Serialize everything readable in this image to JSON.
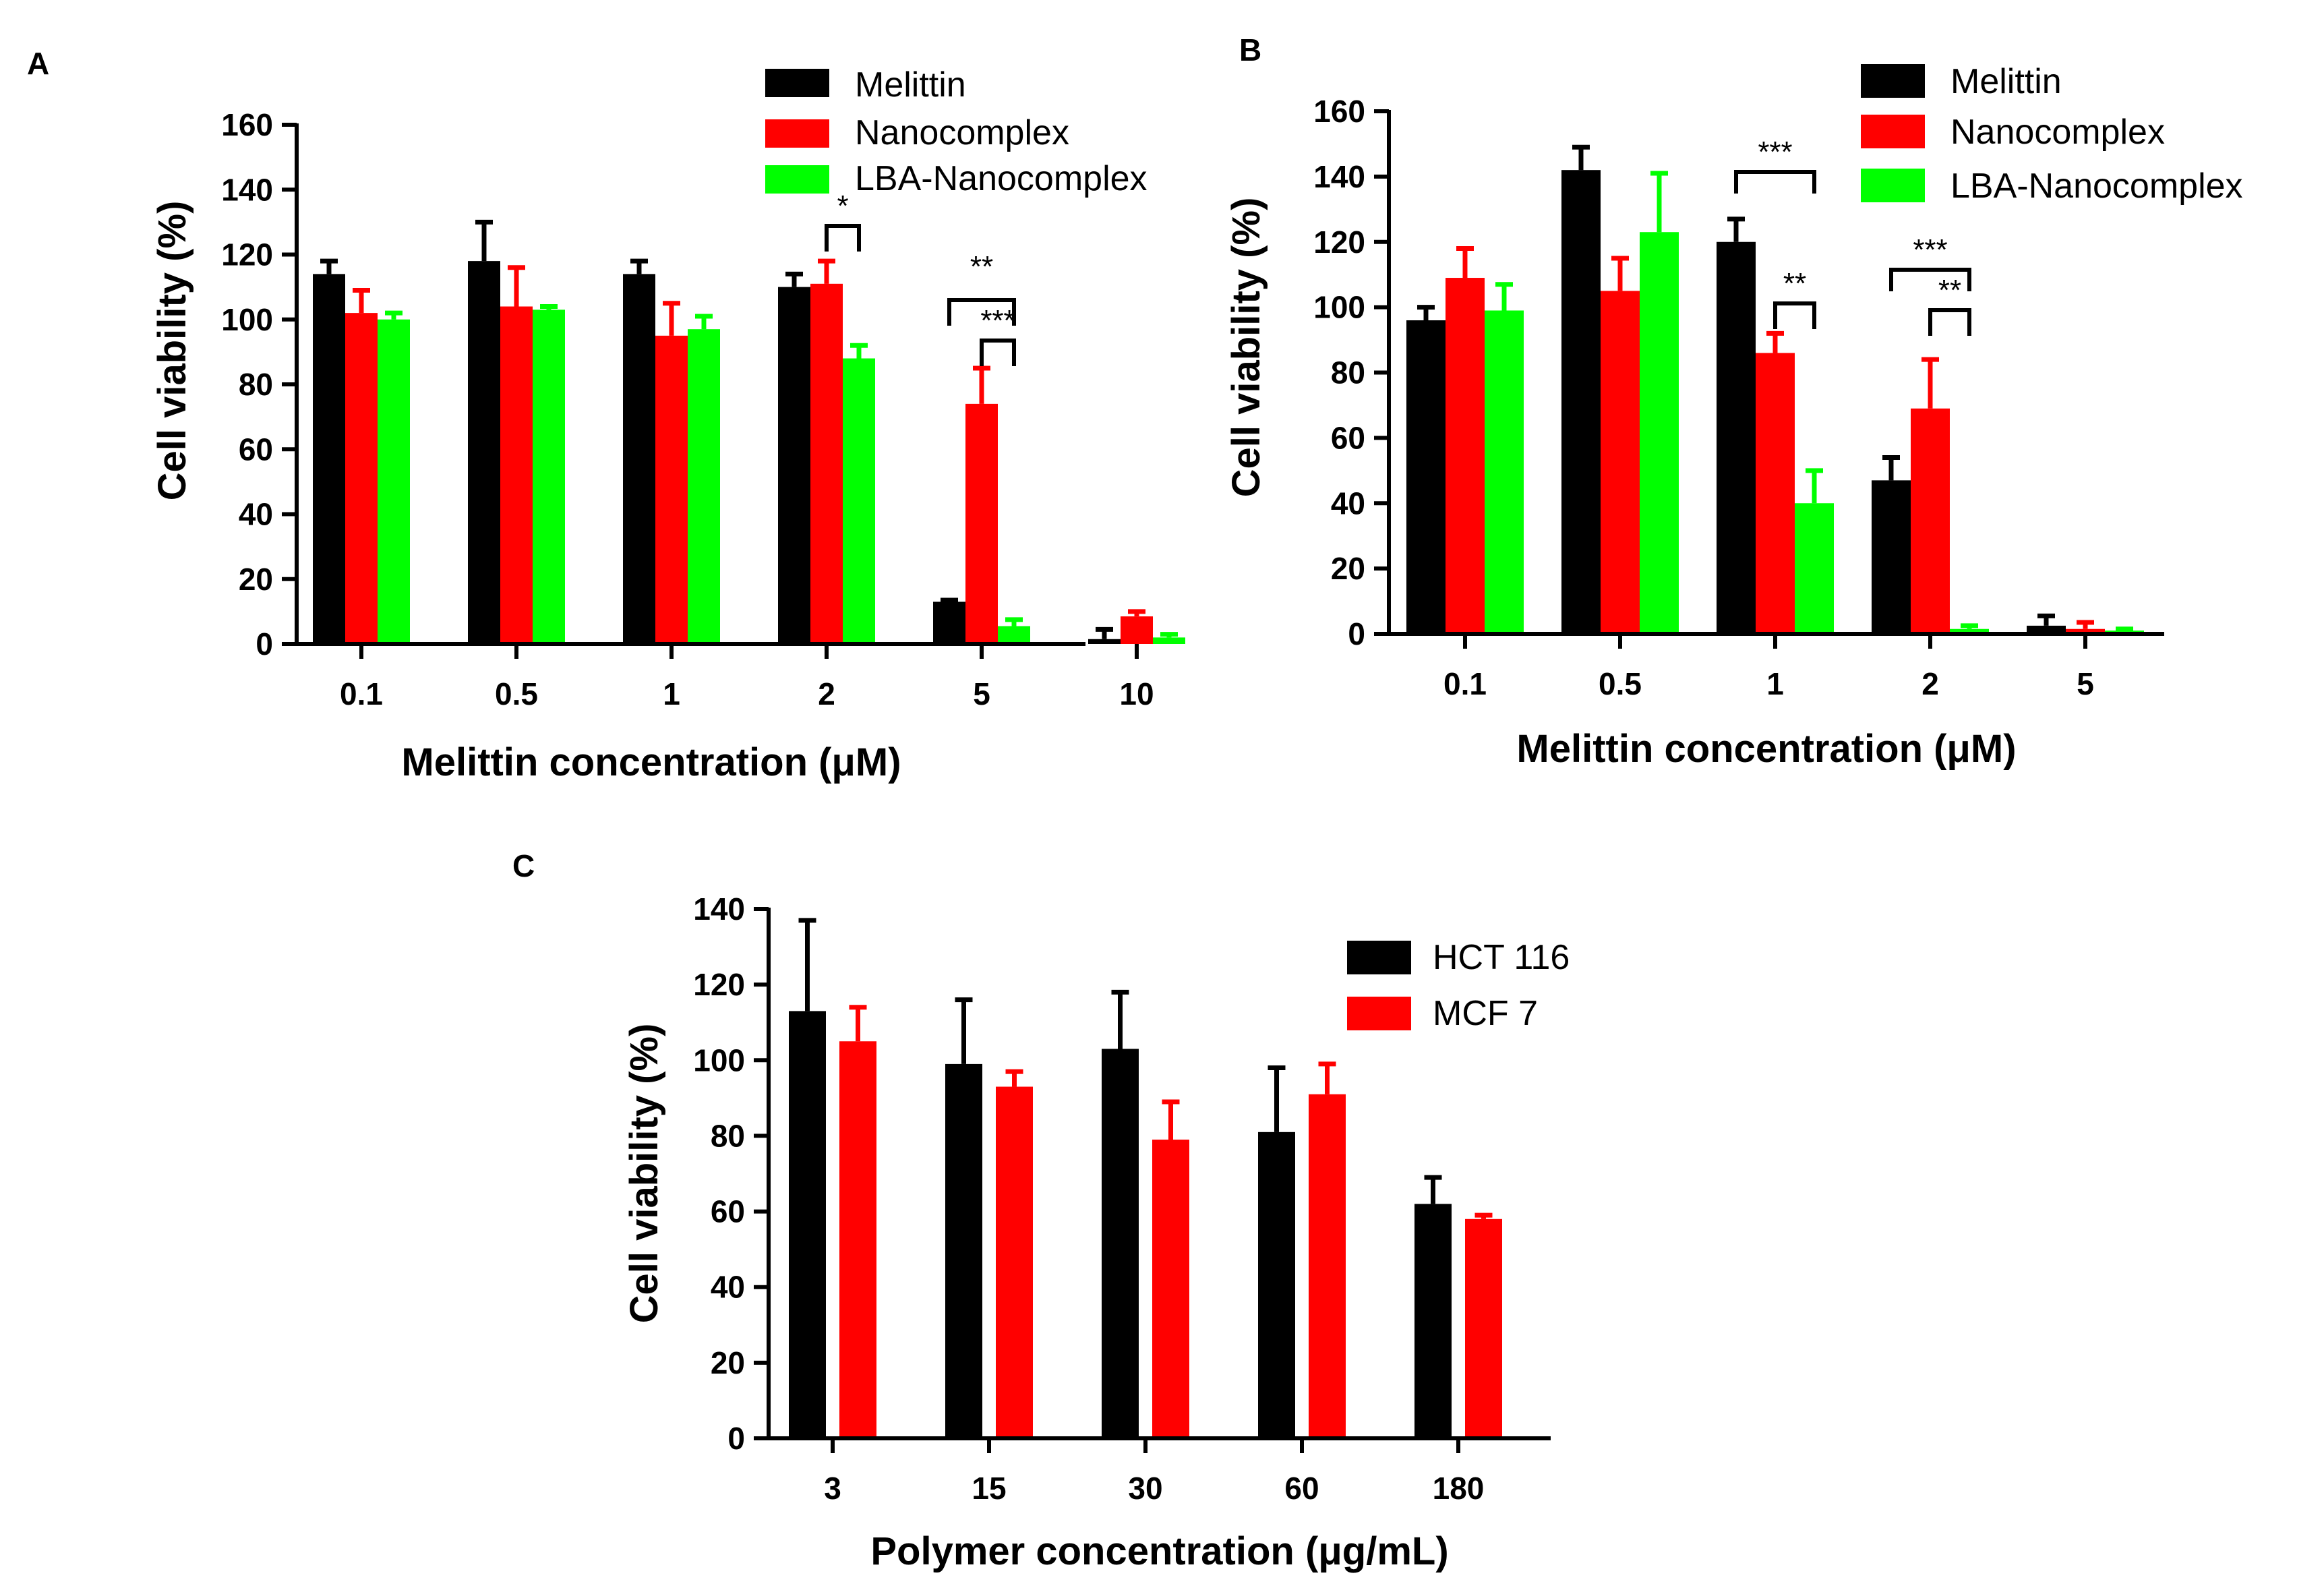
{
  "chart_data": [
    {
      "panel": "A",
      "type": "bar",
      "ylabel": "Cell viability (%)",
      "xlabel_prefix": "Melittin concentration (",
      "xlabel_unit": "μ",
      "xlabel_suffix": "M)",
      "ylim": [
        0,
        160
      ],
      "yticks": [
        "0",
        "20",
        "40",
        "60",
        "80",
        "100",
        "120",
        "140",
        "160"
      ],
      "categories": [
        "0.1",
        "0.5",
        "1",
        "2",
        "5",
        "10"
      ],
      "series": [
        {
          "name": "Melittin",
          "color": "#000000",
          "values": [
            114,
            118,
            114,
            110,
            13,
            1.5
          ],
          "errors": [
            4,
            12,
            4,
            4,
            0.5,
            3
          ]
        },
        {
          "name": "Nanocomplex",
          "color": "#ff0000",
          "values": [
            102,
            104,
            95,
            111,
            74,
            8.5
          ],
          "errors": [
            7,
            12,
            10,
            7,
            11,
            1.5
          ]
        },
        {
          "name": "LBA-Nanocomplex",
          "color": "#00ff00",
          "values": [
            100,
            103,
            97,
            88,
            5.5,
            2
          ],
          "errors": [
            2,
            1,
            4,
            4,
            2,
            1
          ]
        }
      ],
      "significance": [
        {
          "label": "*",
          "category": 3,
          "from_series": 1,
          "to_series": 2
        },
        {
          "label": "**",
          "category": 4,
          "from_series": 0,
          "to_series": 2
        },
        {
          "label": "***",
          "category": 4,
          "from_series": 1,
          "to_series": 2
        }
      ]
    },
    {
      "panel": "B",
      "type": "bar",
      "ylabel": "Cell viability (%)",
      "xlabel_prefix": "Melittin concentration (",
      "xlabel_unit": "μ",
      "xlabel_suffix": "M)",
      "ylim": [
        0,
        160
      ],
      "yticks": [
        "0",
        "20",
        "40",
        "60",
        "80",
        "100",
        "120",
        "140",
        "160"
      ],
      "categories": [
        "0.1",
        "0.5",
        "1",
        "2",
        "5"
      ],
      "series": [
        {
          "name": "Melittin",
          "color": "#000000",
          "values": [
            96,
            142,
            120,
            47,
            2.5
          ],
          "errors": [
            4,
            7,
            7,
            7,
            3
          ]
        },
        {
          "name": "Nanocomplex",
          "color": "#ff0000",
          "values": [
            109,
            105,
            86,
            69,
            1.5
          ],
          "errors": [
            9,
            10,
            6,
            15,
            2
          ]
        },
        {
          "name": "LBA-Nanocomplex",
          "color": "#00ff00",
          "values": [
            99,
            123,
            40,
            1.5,
            1
          ],
          "errors": [
            8,
            18,
            10,
            1,
            0.5
          ]
        }
      ],
      "significance": [
        {
          "label": "***",
          "category": 2,
          "from_series": 0,
          "to_series": 2
        },
        {
          "label": "**",
          "category": 2,
          "from_series": 1,
          "to_series": 2
        },
        {
          "label": "***",
          "category": 3,
          "from_series": 0,
          "to_series": 2
        },
        {
          "label": "**",
          "category": 3,
          "from_series": 1,
          "to_series": 2
        }
      ]
    },
    {
      "panel": "C",
      "type": "bar",
      "ylabel": "Cell viability (%)",
      "xlabel_prefix": "Polymer concentration (",
      "xlabel_unit": "μ",
      "xlabel_suffix": "g/mL)",
      "ylim": [
        0,
        140
      ],
      "yticks": [
        "0",
        "20",
        "40",
        "60",
        "80",
        "100",
        "120",
        "140"
      ],
      "categories": [
        "3",
        "15",
        "30",
        "60",
        "180"
      ],
      "series": [
        {
          "name": "HCT 116",
          "color": "#000000",
          "values": [
            113,
            99,
            103,
            81,
            62
          ],
          "errors": [
            24,
            17,
            15,
            17,
            7
          ]
        },
        {
          "name": "MCF 7",
          "color": "#ff0000",
          "values": [
            105,
            93,
            79,
            91,
            58
          ],
          "errors": [
            9,
            4,
            10,
            8,
            1
          ]
        }
      ],
      "significance": []
    }
  ]
}
